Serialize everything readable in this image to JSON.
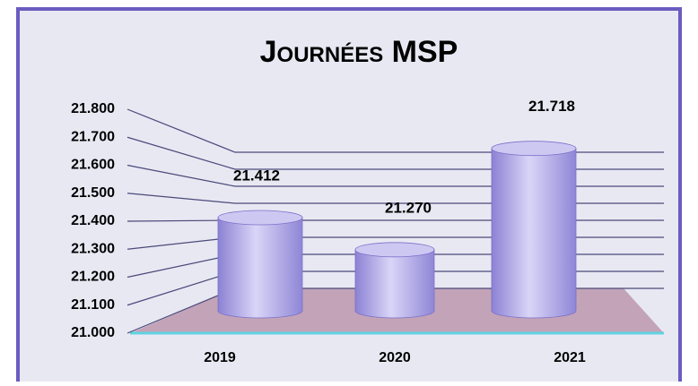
{
  "chart_data": {
    "type": "bar",
    "title": "Journées MSP",
    "categories": [
      "2019",
      "2020",
      "2021"
    ],
    "values": [
      21412,
      21270,
      21718
    ],
    "value_labels": [
      "21.412",
      "21.270",
      "21.718"
    ],
    "color": "#a79fe4",
    "ylim": [
      21000,
      21800
    ],
    "yticks": [
      {
        "value": 21000,
        "label": "21.000"
      },
      {
        "value": 21100,
        "label": "21.100"
      },
      {
        "value": 21200,
        "label": "21.200"
      },
      {
        "value": 21300,
        "label": "21.300"
      },
      {
        "value": 21400,
        "label": "21.400"
      },
      {
        "value": 21500,
        "label": "21.500"
      },
      {
        "value": 21600,
        "label": "21.600"
      },
      {
        "value": 21700,
        "label": "21.700"
      },
      {
        "value": 21800,
        "label": "21.800"
      }
    ],
    "grid": true
  }
}
